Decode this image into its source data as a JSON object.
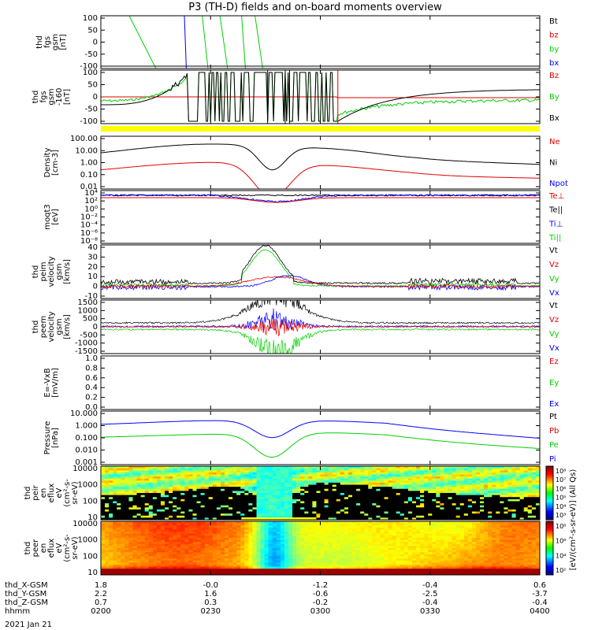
{
  "title": "P3 (TH-D) fields and on-board moments overview",
  "date": "2021 Jan 21",
  "colors": {
    "black": "#000000",
    "red": "#e00000",
    "green": "#00d000",
    "blue": "#0000ff",
    "yellow": "#ffff00"
  },
  "chart_data": {
    "type": "line",
    "x_ticks": [
      "0200",
      "0230",
      "0300",
      "0330",
      "0400"
    ],
    "ephemeris": [
      {
        "label": "thd_X-GSM",
        "values": [
          "1.8",
          "-0.0",
          "-1.2",
          "-0.4",
          "0.6"
        ]
      },
      {
        "label": "thd_Y-GSM",
        "values": [
          "2.2",
          "1.6",
          "-0.6",
          "-2.5",
          "-3.7"
        ]
      },
      {
        "label": "thd_Z-GSM",
        "values": [
          "0.7",
          "0.3",
          "-0.2",
          "-0.4",
          "-0.4"
        ]
      },
      {
        "label": "hhmm",
        "values": [
          "0200",
          "0230",
          "0300",
          "0330",
          "0400"
        ]
      }
    ],
    "panels": [
      {
        "ylabel": [
          "thd",
          "fgs",
          "gsm",
          "[nT]"
        ],
        "yticks": [
          "100",
          "50",
          "0",
          "-50",
          "-100"
        ],
        "legend": [
          {
            "t": "Bt",
            "c": "black"
          },
          {
            "t": "bz",
            "c": "red"
          },
          {
            "t": "by",
            "c": "green"
          },
          {
            "t": "bx",
            "c": "blue"
          }
        ]
      },
      {
        "ylabel": [
          "thd",
          "fgs",
          "gsm",
          "-160",
          "[nT]"
        ],
        "yticks": [
          "100",
          "50",
          "0",
          "-50",
          "-100"
        ],
        "legend": [
          {
            "t": "Bz",
            "c": "red"
          },
          {
            "t": "By",
            "c": "green"
          },
          {
            "t": "Bx",
            "c": "black"
          }
        ]
      },
      {
        "ylabel": [
          "Density",
          "[cm-3]"
        ],
        "yticks": [
          "100.00",
          "10.00",
          "1.00",
          "0.10",
          "0.01"
        ],
        "legend": [
          {
            "t": "Ne",
            "c": "red"
          },
          {
            "t": "Ni",
            "c": "black"
          },
          {
            "t": "Npot",
            "c": "blue"
          }
        ]
      },
      {
        "ylabel": [
          "moqt3",
          "[eV]"
        ],
        "yticks": [
          "10⁴",
          "10²",
          "10⁰",
          "10⁻²",
          "10⁻⁴",
          "10⁻⁶",
          "10⁻⁸"
        ],
        "legend": [
          {
            "t": "Te⊥",
            "c": "red"
          },
          {
            "t": "Te||",
            "c": "black"
          },
          {
            "t": "Ti⊥",
            "c": "blue"
          },
          {
            "t": "Ti||",
            "c": "green"
          }
        ]
      },
      {
        "ylabel": [
          "thd",
          "peim",
          "velocity",
          "gsm",
          "[km/s]"
        ],
        "yticks": [
          "40",
          "30",
          "20",
          "10",
          "0",
          "-10"
        ],
        "legend": [
          {
            "t": "Vt",
            "c": "black"
          },
          {
            "t": "Vz",
            "c": "red"
          },
          {
            "t": "Vy",
            "c": "green"
          },
          {
            "t": "Vx",
            "c": "blue"
          }
        ]
      },
      {
        "ylabel": [
          "thd",
          "peem",
          "velocity",
          "gsm",
          "[km/s]"
        ],
        "yticks": [
          "1500",
          "1000",
          "500",
          "0",
          "-500",
          "-1000",
          "-1500"
        ],
        "legend": [
          {
            "t": "Vt",
            "c": "black"
          },
          {
            "t": "Vz",
            "c": "red"
          },
          {
            "t": "Vy",
            "c": "green"
          },
          {
            "t": "Vx",
            "c": "blue"
          }
        ]
      },
      {
        "ylabel": [
          "E=-VxB",
          "[mV/m]"
        ],
        "yticks": [
          "1.0",
          "0.8",
          "0.6",
          "0.4",
          "0.2",
          "0.0"
        ],
        "legend": [
          {
            "t": "Ez",
            "c": "red"
          },
          {
            "t": "Ey",
            "c": "green"
          },
          {
            "t": "Ex",
            "c": "blue"
          }
        ]
      },
      {
        "ylabel": [
          "Pressure",
          "[nPa]"
        ],
        "yticks": [
          "10.000",
          "1.000",
          "0.100",
          "0.010",
          "0.001"
        ],
        "legend": [
          {
            "t": "Pt",
            "c": "black"
          },
          {
            "t": "Pb",
            "c": "red"
          },
          {
            "t": "Pe",
            "c": "green"
          },
          {
            "t": "Pi",
            "c": "blue"
          }
        ]
      },
      {
        "ylabel": [
          "thd",
          "peir",
          "en",
          "eflux",
          "eV",
          "(cm²-s-",
          "sr-eV)"
        ],
        "yticks": [
          "10000",
          "1000",
          "100",
          "10"
        ],
        "colorbar_label": "[eV/(cm²-s-sr-eV)] (All Qs)",
        "colorbar_ticks": [
          "10⁸",
          "10⁷",
          "10⁶",
          "10⁵",
          "10⁴",
          "10³"
        ]
      },
      {
        "ylabel": [
          "thd",
          "peer",
          "en",
          "eflux",
          "eV",
          "(cm²-s-",
          "sr-eV)"
        ],
        "yticks": [
          "10000",
          "1000",
          "100",
          "10"
        ],
        "colorbar_label": "[eV/(cm²-s-sr-eV)] (All Qs)",
        "colorbar_ticks": [
          "10⁸",
          "10⁶",
          "10⁴",
          "10²"
        ]
      }
    ]
  }
}
